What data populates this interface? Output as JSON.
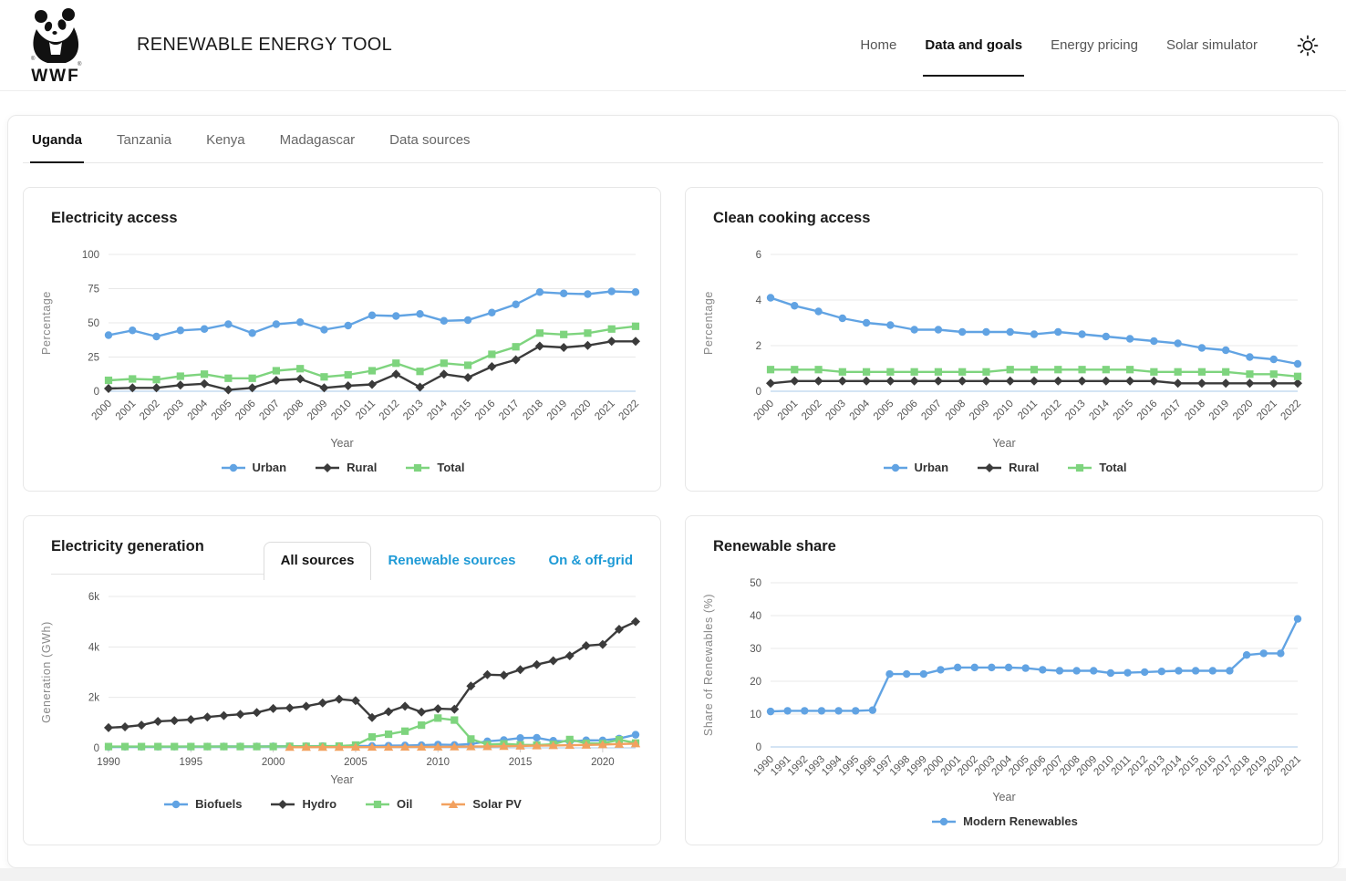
{
  "header": {
    "logo_text": "WWF",
    "title": "RENEWABLE ENERGY TOOL",
    "nav": [
      {
        "label": "Home",
        "active": false
      },
      {
        "label": "Data and goals",
        "active": true
      },
      {
        "label": "Energy pricing",
        "active": false
      },
      {
        "label": "Solar simulator",
        "active": false
      }
    ],
    "theme_toggle_icon": "sun-icon"
  },
  "tabs": [
    {
      "label": "Uganda",
      "active": true
    },
    {
      "label": "Tanzania",
      "active": false
    },
    {
      "label": "Kenya",
      "active": false
    },
    {
      "label": "Madagascar",
      "active": false
    },
    {
      "label": "Data sources",
      "active": false
    }
  ],
  "cards": {
    "electricity_access": {
      "title": "Electricity access"
    },
    "clean_cooking": {
      "title": "Clean cooking access"
    },
    "generation": {
      "title": "Electricity generation",
      "subtabs": [
        {
          "label": "All sources",
          "active": true
        },
        {
          "label": "Renewable sources",
          "active": false
        },
        {
          "label": "On & off-grid",
          "active": false
        }
      ]
    },
    "renewable_share": {
      "title": "Renewable share"
    }
  },
  "colors": {
    "series_blue": "#61a3e3",
    "series_dark": "#3b3b3b",
    "series_green": "#7ed47e",
    "series_orange": "#f2a15f",
    "link_blue": "#1e9ad6",
    "grid_line": "#e8e8e8",
    "zero_line": "#aac8e8",
    "tick_text": "#555555",
    "axis_title_text": "#888888"
  },
  "chart_data": [
    {
      "id": "electricity-access",
      "type": "line",
      "title": "Electricity access",
      "xlabel": "Year",
      "ylabel": "Percentage",
      "ylim": [
        0,
        100
      ],
      "grid": true,
      "legend_position": "bottom",
      "yticks": [
        {
          "v": 0,
          "label": "0"
        },
        {
          "v": 25,
          "label": "25"
        },
        {
          "v": 50,
          "label": "50"
        },
        {
          "v": 75,
          "label": "75"
        },
        {
          "v": 100,
          "label": "100"
        }
      ],
      "x": [
        "2000",
        "2001",
        "2002",
        "2003",
        "2004",
        "2005",
        "2006",
        "2007",
        "2008",
        "2009",
        "2010",
        "2011",
        "2012",
        "2013",
        "2014",
        "2015",
        "2016",
        "2017",
        "2018",
        "2019",
        "2020",
        "2021",
        "2022"
      ],
      "series": [
        {
          "name": "Urban",
          "color": "#61a3e3",
          "marker": "circle",
          "values": [
            41,
            44.5,
            40,
            44.5,
            45.5,
            49,
            42.5,
            49,
            50.5,
            45,
            48,
            55.5,
            55,
            56.5,
            51.5,
            52,
            57.5,
            63.5,
            72.5,
            71.5,
            71,
            73,
            72.5
          ]
        },
        {
          "name": "Rural",
          "color": "#3b3b3b",
          "marker": "diamond",
          "values": [
            2,
            2.5,
            2.5,
            4.5,
            5.5,
            1,
            2.5,
            8,
            9,
            2.5,
            4,
            5,
            12.5,
            3,
            12.5,
            10,
            18,
            23,
            33,
            32,
            33.5,
            36.5,
            36.5
          ]
        },
        {
          "name": "Total",
          "color": "#7ed47e",
          "marker": "square",
          "values": [
            8,
            9,
            8.5,
            11,
            12.5,
            9.5,
            9.5,
            15,
            16.5,
            10.5,
            12,
            15,
            20.5,
            14.5,
            20.5,
            19,
            27,
            32.5,
            42.5,
            41.5,
            42.5,
            45.5,
            47.5
          ]
        }
      ]
    },
    {
      "id": "clean-cooking",
      "type": "line",
      "title": "Clean cooking access",
      "xlabel": "Year",
      "ylabel": "Percentage",
      "ylim": [
        0,
        6
      ],
      "grid": true,
      "legend_position": "bottom",
      "yticks": [
        {
          "v": 0,
          "label": "0"
        },
        {
          "v": 2,
          "label": "2"
        },
        {
          "v": 4,
          "label": "4"
        },
        {
          "v": 6,
          "label": "6"
        }
      ],
      "x": [
        "2000",
        "2001",
        "2002",
        "2003",
        "2004",
        "2005",
        "2006",
        "2007",
        "2008",
        "2009",
        "2010",
        "2011",
        "2012",
        "2013",
        "2014",
        "2015",
        "2016",
        "2017",
        "2018",
        "2019",
        "2020",
        "2021",
        "2022"
      ],
      "series": [
        {
          "name": "Urban",
          "color": "#61a3e3",
          "marker": "circle",
          "values": [
            4.1,
            3.75,
            3.5,
            3.2,
            3.0,
            2.9,
            2.7,
            2.7,
            2.6,
            2.6,
            2.6,
            2.5,
            2.6,
            2.5,
            2.4,
            2.3,
            2.2,
            2.1,
            1.9,
            1.8,
            1.5,
            1.4,
            1.2
          ]
        },
        {
          "name": "Rural",
          "color": "#3b3b3b",
          "marker": "diamond",
          "values": [
            0.35,
            0.45,
            0.45,
            0.45,
            0.45,
            0.45,
            0.45,
            0.45,
            0.45,
            0.45,
            0.45,
            0.45,
            0.45,
            0.45,
            0.45,
            0.45,
            0.45,
            0.35,
            0.35,
            0.35,
            0.35,
            0.35,
            0.35
          ]
        },
        {
          "name": "Total",
          "color": "#7ed47e",
          "marker": "square",
          "values": [
            0.95,
            0.95,
            0.95,
            0.85,
            0.85,
            0.85,
            0.85,
            0.85,
            0.85,
            0.85,
            0.95,
            0.95,
            0.95,
            0.95,
            0.95,
            0.95,
            0.85,
            0.85,
            0.85,
            0.85,
            0.75,
            0.75,
            0.65
          ]
        }
      ]
    },
    {
      "id": "generation",
      "type": "line",
      "title": "Electricity generation",
      "xlabel": "Year",
      "ylabel": "Generation (GWh)",
      "ylim": [
        0,
        6000
      ],
      "grid": true,
      "legend_position": "bottom",
      "yticks": [
        {
          "v": 0,
          "label": "0"
        },
        {
          "v": 2000,
          "label": "2k"
        },
        {
          "v": 4000,
          "label": "4k"
        },
        {
          "v": 6000,
          "label": "6k"
        }
      ],
      "x": [
        "1990",
        "1991",
        "1992",
        "1993",
        "1994",
        "1995",
        "1996",
        "1997",
        "1998",
        "1999",
        "2000",
        "2001",
        "2002",
        "2003",
        "2004",
        "2005",
        "2006",
        "2007",
        "2008",
        "2009",
        "2010",
        "2011",
        "2012",
        "2013",
        "2014",
        "2015",
        "2016",
        "2017",
        "2018",
        "2019",
        "2020",
        "2021",
        "2022"
      ],
      "series": [
        {
          "name": "Biofuels",
          "color": "#61a3e3",
          "marker": "circle",
          "values": [
            40,
            42,
            44,
            46,
            48,
            50,
            52,
            54,
            56,
            58,
            60,
            62,
            65,
            68,
            70,
            72,
            75,
            85,
            95,
            105,
            130,
            115,
            150,
            260,
            310,
            390,
            400,
            280,
            250,
            300,
            295,
            370,
            520
          ]
        },
        {
          "name": "Hydro",
          "color": "#3b3b3b",
          "marker": "diamond",
          "values": [
            800,
            830,
            900,
            1050,
            1080,
            1120,
            1220,
            1280,
            1330,
            1400,
            1560,
            1580,
            1650,
            1780,
            1930,
            1870,
            1200,
            1430,
            1650,
            1420,
            1550,
            1530,
            2450,
            2900,
            2880,
            3100,
            3300,
            3450,
            3650,
            4050,
            4100,
            4700,
            5000
          ]
        },
        {
          "name": "Oil",
          "color": "#7ed47e",
          "marker": "square",
          "values": [
            50,
            50,
            50,
            50,
            50,
            50,
            50,
            50,
            50,
            50,
            50,
            60,
            60,
            60,
            70,
            110,
            430,
            540,
            660,
            900,
            1180,
            1100,
            350,
            130,
            160,
            120,
            110,
            140,
            330,
            180,
            170,
            320,
            190
          ]
        },
        {
          "name": "Solar PV",
          "color": "#f2a15f",
          "marker": "triangle",
          "values": [
            null,
            null,
            null,
            null,
            null,
            null,
            null,
            null,
            null,
            null,
            null,
            25,
            25,
            28,
            28,
            30,
            30,
            32,
            35,
            38,
            40,
            45,
            50,
            55,
            65,
            75,
            85,
            95,
            105,
            115,
            130,
            150,
            165
          ]
        }
      ]
    },
    {
      "id": "renewable-share",
      "type": "line",
      "title": "Renewable share",
      "xlabel": "Year",
      "ylabel": "Share of Renewables (%)",
      "ylim": [
        0,
        50
      ],
      "grid": true,
      "legend_position": "bottom",
      "yticks": [
        {
          "v": 0,
          "label": "0"
        },
        {
          "v": 10,
          "label": "10"
        },
        {
          "v": 20,
          "label": "20"
        },
        {
          "v": 30,
          "label": "30"
        },
        {
          "v": 40,
          "label": "40"
        },
        {
          "v": 50,
          "label": "50"
        }
      ],
      "x": [
        "1990",
        "1991",
        "1992",
        "1993",
        "1994",
        "1995",
        "1996",
        "1997",
        "1998",
        "1999",
        "2000",
        "2001",
        "2002",
        "2003",
        "2004",
        "2005",
        "2006",
        "2007",
        "2008",
        "2009",
        "2010",
        "2011",
        "2012",
        "2013",
        "2014",
        "2015",
        "2016",
        "2017",
        "2018",
        "2019",
        "2020",
        "2021"
      ],
      "series": [
        {
          "name": "Modern Renewables",
          "color": "#61a3e3",
          "marker": "circle",
          "values": [
            10.8,
            11,
            11,
            11,
            11,
            11,
            11.2,
            22.2,
            22.2,
            22.2,
            23.5,
            24.2,
            24.2,
            24.2,
            24.2,
            24,
            23.5,
            23.2,
            23.2,
            23.2,
            22.5,
            22.6,
            22.8,
            23,
            23.2,
            23.2,
            23.2,
            23.2,
            28,
            28.5,
            28.5,
            39
          ]
        }
      ]
    }
  ]
}
